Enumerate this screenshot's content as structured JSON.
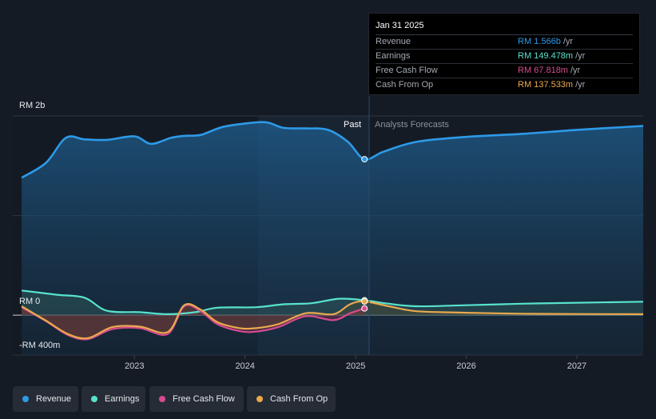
{
  "chart_data": {
    "type": "line",
    "title": "",
    "y_axis": {
      "labels": [
        "RM 2b",
        "RM 0",
        "-RM 400m"
      ],
      "ylim": [
        -400,
        2000
      ],
      "unit": "RM m"
    },
    "x_axis": {
      "ticks": [
        "2023",
        "2024",
        "2025",
        "2026",
        "2027"
      ],
      "xlim": [
        2021.9,
        2027.6
      ]
    },
    "past_label": "Past",
    "forecast_label": "Analysts Forecasts",
    "forecast_start": 2025.08,
    "series": [
      {
        "name": "Revenue",
        "color": "#2d9ae8",
        "x": [
          2021.98,
          2022.2,
          2022.38,
          2022.55,
          2022.75,
          2023.0,
          2023.15,
          2023.33,
          2023.45,
          2023.6,
          2023.8,
          2024.05,
          2024.2,
          2024.35,
          2024.55,
          2024.75,
          2024.93,
          2025.08,
          2025.25,
          2025.55,
          2026.0,
          2026.5,
          2027.0,
          2027.6
        ],
        "values": [
          1380,
          1530,
          1780,
          1765,
          1760,
          1795,
          1720,
          1780,
          1800,
          1810,
          1890,
          1930,
          1935,
          1880,
          1875,
          1860,
          1740,
          1566,
          1640,
          1740,
          1790,
          1820,
          1860,
          1900
        ]
      },
      {
        "name": "Earnings",
        "color": "#58e2cc",
        "x": [
          2021.98,
          2022.3,
          2022.55,
          2022.75,
          2023.05,
          2023.3,
          2023.55,
          2023.75,
          2024.1,
          2024.35,
          2024.6,
          2024.85,
          2025.08,
          2025.3,
          2025.55,
          2026.0,
          2026.5,
          2027.0,
          2027.6
        ],
        "values": [
          248,
          205,
          175,
          45,
          30,
          10,
          30,
          75,
          80,
          110,
          120,
          165,
          149.5,
          115,
          90,
          100,
          115,
          125,
          135
        ]
      },
      {
        "name": "Free Cash Flow",
        "color": "#d64b8f",
        "x": [
          2021.98,
          2022.2,
          2022.4,
          2022.58,
          2022.8,
          2023.05,
          2023.3,
          2023.45,
          2023.6,
          2023.75,
          2023.95,
          2024.1,
          2024.3,
          2024.55,
          2024.8,
          2024.95,
          2025.08
        ],
        "values": [
          80,
          -60,
          -200,
          -240,
          -140,
          -130,
          -190,
          90,
          40,
          -90,
          -160,
          -165,
          -120,
          -10,
          -50,
          20,
          67.8
        ]
      },
      {
        "name": "Cash From Op",
        "color": "#e9a94d",
        "x": [
          2021.98,
          2022.2,
          2022.4,
          2022.58,
          2022.8,
          2023.05,
          2023.3,
          2023.45,
          2023.6,
          2023.75,
          2023.95,
          2024.1,
          2024.3,
          2024.55,
          2024.8,
          2024.95,
          2025.08,
          2025.3,
          2025.55,
          2026.0,
          2026.5,
          2027.0,
          2027.6
        ],
        "values": [
          90,
          -55,
          -190,
          -230,
          -120,
          -115,
          -170,
          100,
          55,
          -70,
          -130,
          -130,
          -90,
          20,
          10,
          110,
          137.5,
          90,
          40,
          25,
          15,
          12,
          10
        ]
      }
    ],
    "tooltip": {
      "date": "Jan 31 2025",
      "rows": [
        {
          "name": "Revenue",
          "value": "RM 1.566b",
          "unit": "/yr",
          "color": "#2d9ae8"
        },
        {
          "name": "Earnings",
          "value": "RM 149.478m",
          "unit": "/yr",
          "color": "#58e2cc"
        },
        {
          "name": "Free Cash Flow",
          "value": "RM 67.818m",
          "unit": "/yr",
          "color": "#d64b8f"
        },
        {
          "name": "Cash From Op",
          "value": "RM 137.533m",
          "unit": "/yr",
          "color": "#e9a94d"
        }
      ]
    },
    "legend": [
      "Revenue",
      "Earnings",
      "Free Cash Flow",
      "Cash From Op"
    ]
  }
}
